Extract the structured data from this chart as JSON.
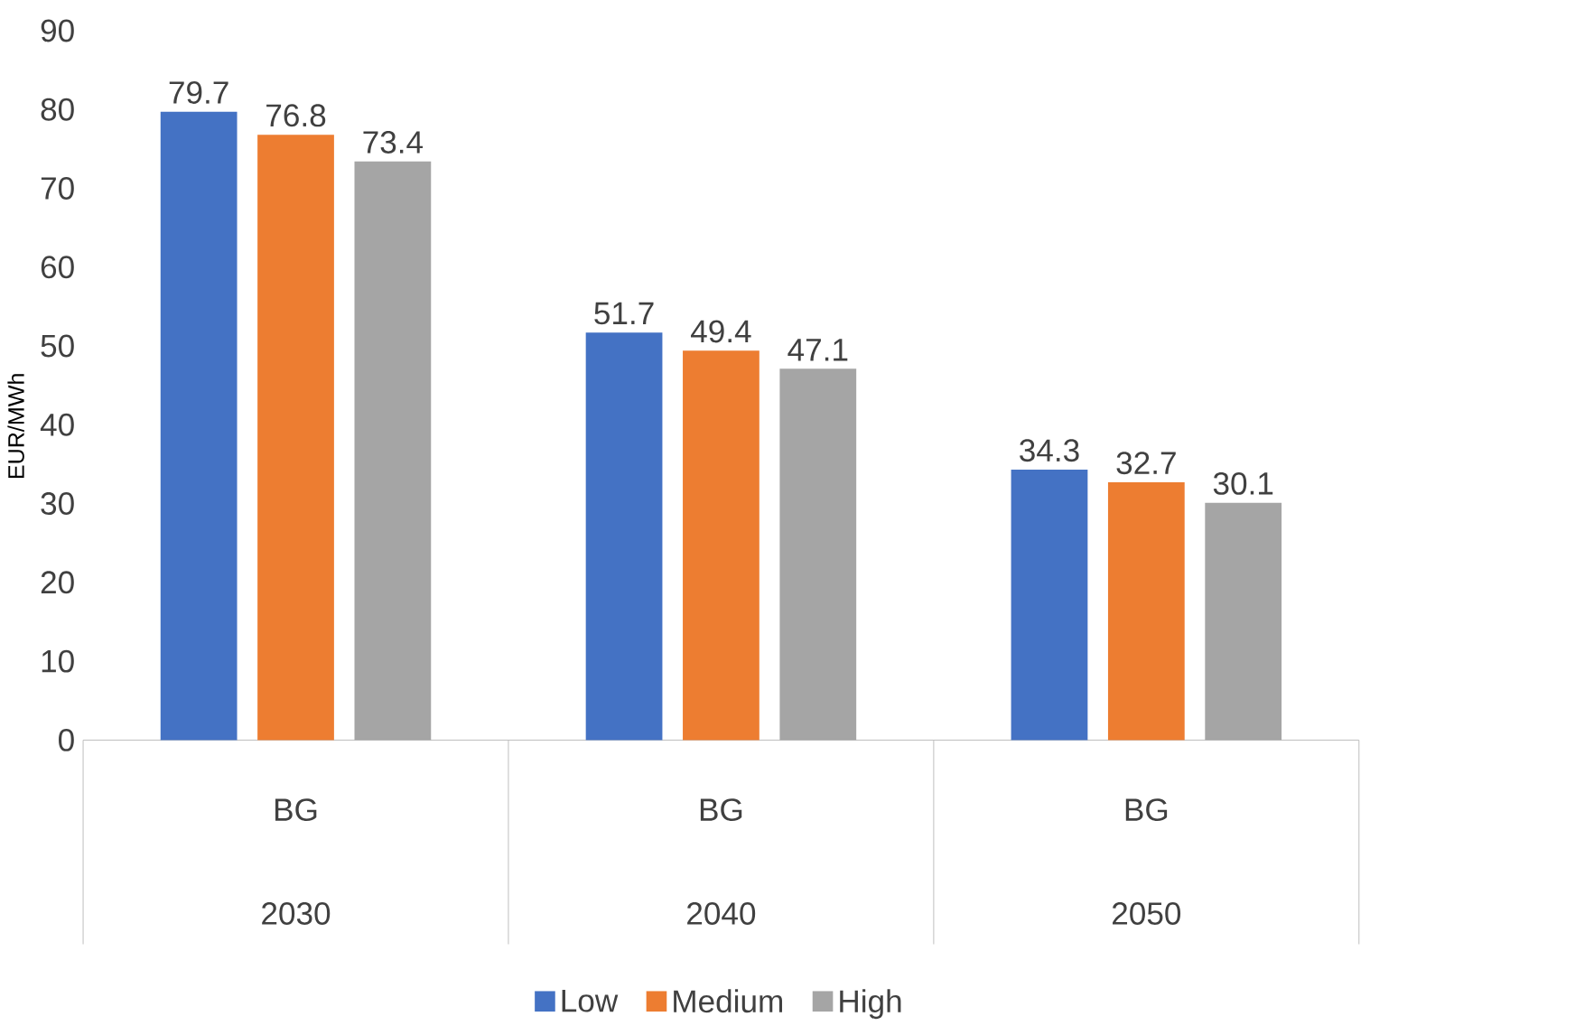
{
  "chart_data": {
    "type": "bar",
    "ylabel": "EUR/MWh",
    "categories": [
      "2030",
      "2040",
      "2050"
    ],
    "annotations": [
      "BG",
      "BG",
      "BG"
    ],
    "series": [
      {
        "name": "Low",
        "color": "#4472c4",
        "values": [
          79.7,
          51.7,
          34.3
        ]
      },
      {
        "name": "Medium",
        "color": "#ed7d31",
        "values": [
          76.8,
          49.4,
          32.7
        ]
      },
      {
        "name": "High",
        "color": "#a5a5a5",
        "values": [
          73.4,
          47.1,
          30.1
        ]
      }
    ],
    "ylim": [
      0,
      90
    ],
    "yticks": [
      0,
      10,
      20,
      30,
      40,
      50,
      60,
      70,
      80,
      90
    ],
    "data_labels": true,
    "grid": false,
    "legend": "bottom"
  }
}
